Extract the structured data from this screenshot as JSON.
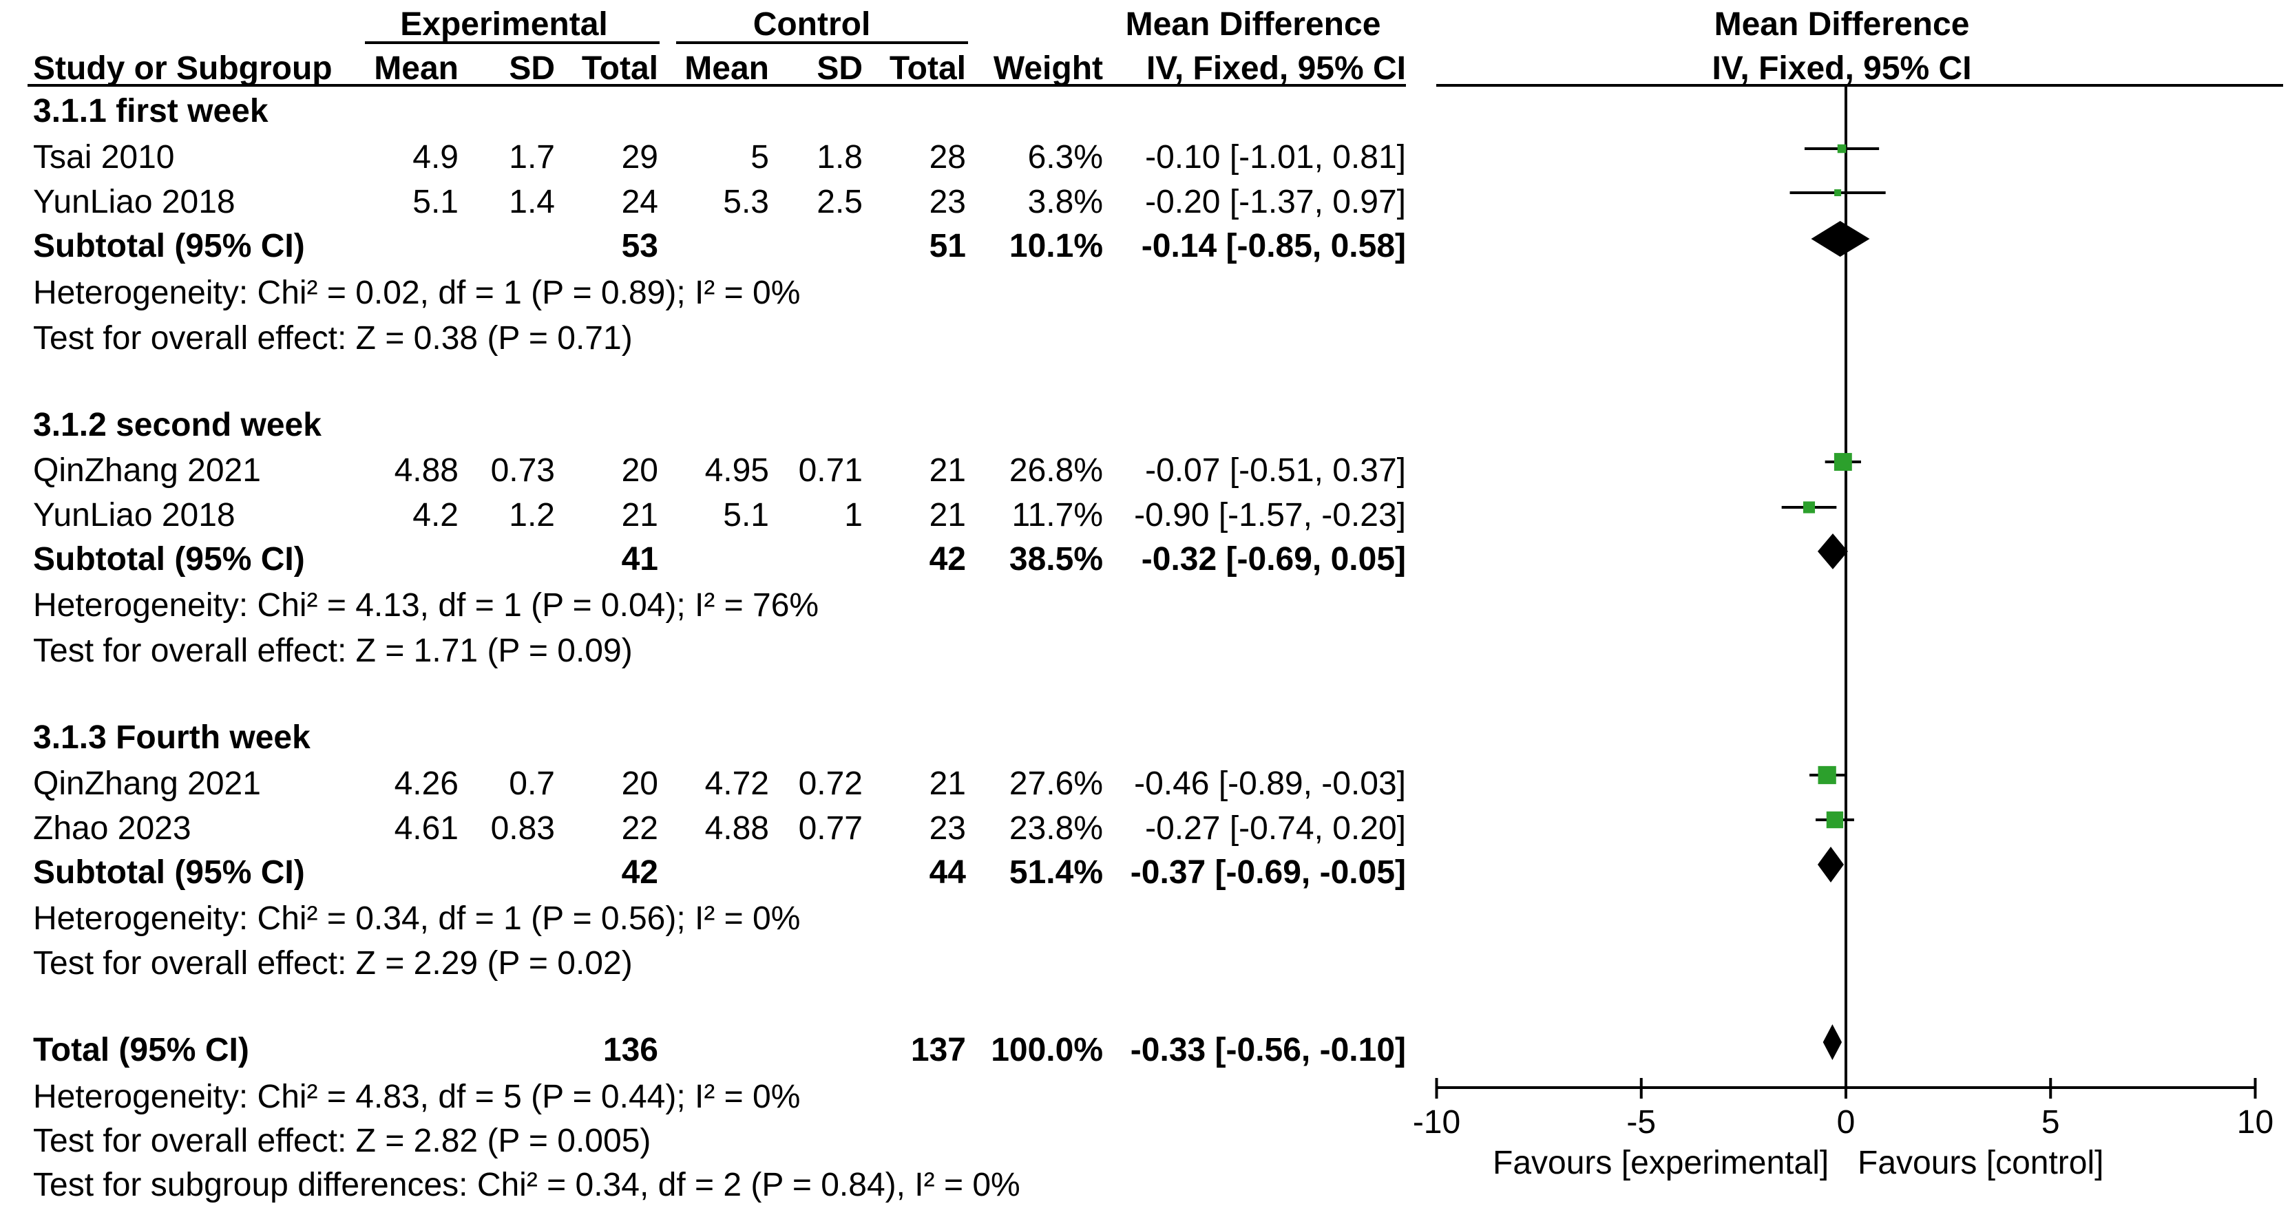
{
  "header": {
    "experimental": "Experimental",
    "control": "Control",
    "md_title": "Mean Difference",
    "md_method": "IV, Fixed, 95% CI",
    "plot_title": "Mean Difference",
    "plot_method": "IV, Fixed, 95% CI",
    "study": "Study or Subgroup",
    "mean": "Mean",
    "sd": "SD",
    "total": "Total",
    "weight": "Weight"
  },
  "groups": [
    {
      "title": "3.1.1 first week",
      "studies": [
        {
          "name": "Tsai 2010",
          "e_mean": "4.9",
          "e_sd": "1.7",
          "e_total": "29",
          "c_mean": "5",
          "c_sd": "1.8",
          "c_total": "28",
          "weight": "6.3%",
          "ci": "-0.10 [-1.01, 0.81]"
        },
        {
          "name": "YunLiao 2018",
          "e_mean": "5.1",
          "e_sd": "1.4",
          "e_total": "24",
          "c_mean": "5.3",
          "c_sd": "2.5",
          "c_total": "23",
          "weight": "3.8%",
          "ci": "-0.20 [-1.37, 0.97]"
        }
      ],
      "subtotal": {
        "label": "Subtotal (95% CI)",
        "e_total": "53",
        "c_total": "51",
        "weight": "10.1%",
        "ci": "-0.14 [-0.85, 0.58]"
      },
      "heterogeneity": "Heterogeneity: Chi² = 0.02, df = 1 (P = 0.89); I² = 0%",
      "overall": "Test for overall effect: Z = 0.38 (P = 0.71)"
    },
    {
      "title": "3.1.2 second week",
      "studies": [
        {
          "name": "QinZhang 2021",
          "e_mean": "4.88",
          "e_sd": "0.73",
          "e_total": "20",
          "c_mean": "4.95",
          "c_sd": "0.71",
          "c_total": "21",
          "weight": "26.8%",
          "ci": "-0.07 [-0.51, 0.37]"
        },
        {
          "name": "YunLiao 2018",
          "e_mean": "4.2",
          "e_sd": "1.2",
          "e_total": "21",
          "c_mean": "5.1",
          "c_sd": "1",
          "c_total": "21",
          "weight": "11.7%",
          "ci": "-0.90 [-1.57, -0.23]"
        }
      ],
      "subtotal": {
        "label": "Subtotal (95% CI)",
        "e_total": "41",
        "c_total": "42",
        "weight": "38.5%",
        "ci": "-0.32 [-0.69, 0.05]"
      },
      "heterogeneity": "Heterogeneity: Chi² = 4.13, df = 1 (P = 0.04); I² = 76%",
      "overall": "Test for overall effect: Z = 1.71 (P = 0.09)"
    },
    {
      "title": "3.1.3 Fourth week",
      "studies": [
        {
          "name": "QinZhang 2021",
          "e_mean": "4.26",
          "e_sd": "0.7",
          "e_total": "20",
          "c_mean": "4.72",
          "c_sd": "0.72",
          "c_total": "21",
          "weight": "27.6%",
          "ci": "-0.46 [-0.89, -0.03]"
        },
        {
          "name": "Zhao 2023",
          "e_mean": "4.61",
          "e_sd": "0.83",
          "e_total": "22",
          "c_mean": "4.88",
          "c_sd": "0.77",
          "c_total": "23",
          "weight": "23.8%",
          "ci": "-0.27 [-0.74, 0.20]"
        }
      ],
      "subtotal": {
        "label": "Subtotal (95% CI)",
        "e_total": "42",
        "c_total": "44",
        "weight": "51.4%",
        "ci": "-0.37 [-0.69, -0.05]"
      },
      "heterogeneity": "Heterogeneity: Chi² = 0.34, df = 1 (P = 0.56); I² = 0%",
      "overall": "Test for overall effect: Z = 2.29 (P = 0.02)"
    }
  ],
  "total": {
    "label": "Total (95% CI)",
    "e_total": "136",
    "c_total": "137",
    "weight": "100.0%",
    "ci": "-0.33 [-0.56, -0.10]",
    "heterogeneity": "Heterogeneity: Chi² = 4.83, df = 5 (P = 0.44); I² = 0%",
    "overall": "Test for overall effect: Z = 2.82 (P = 0.005)",
    "subgroup": "Test for subgroup differences: Chi² = 0.34, df = 2 (P = 0.84), I² = 0%"
  },
  "axis": {
    "favours_left": "Favours [experimental]",
    "favours_right": "Favours [control]"
  },
  "chart_data": {
    "type": "forest",
    "xlim": [
      -10,
      10
    ],
    "xticks": [
      -10,
      -5,
      0,
      5,
      10
    ],
    "xticklabels": [
      "-10",
      "-5",
      "0",
      "5",
      "10"
    ],
    "studies": [
      {
        "group": 0,
        "md": -0.1,
        "lo": -1.01,
        "hi": 0.81,
        "weight": 6.3
      },
      {
        "group": 0,
        "md": -0.2,
        "lo": -1.37,
        "hi": 0.97,
        "weight": 3.8
      },
      {
        "group": 1,
        "md": -0.07,
        "lo": -0.51,
        "hi": 0.37,
        "weight": 26.8
      },
      {
        "group": 1,
        "md": -0.9,
        "lo": -1.57,
        "hi": -0.23,
        "weight": 11.7
      },
      {
        "group": 2,
        "md": -0.46,
        "lo": -0.89,
        "hi": -0.03,
        "weight": 27.6
      },
      {
        "group": 2,
        "md": -0.27,
        "lo": -0.74,
        "hi": 0.2,
        "weight": 23.8
      }
    ],
    "diamonds": [
      {
        "md": -0.14,
        "lo": -0.85,
        "hi": 0.58
      },
      {
        "md": -0.32,
        "lo": -0.69,
        "hi": 0.05
      },
      {
        "md": -0.37,
        "lo": -0.69,
        "hi": -0.05
      },
      {
        "md": -0.33,
        "lo": -0.56,
        "hi": -0.1
      }
    ],
    "marker_color": "#2ca02c"
  }
}
